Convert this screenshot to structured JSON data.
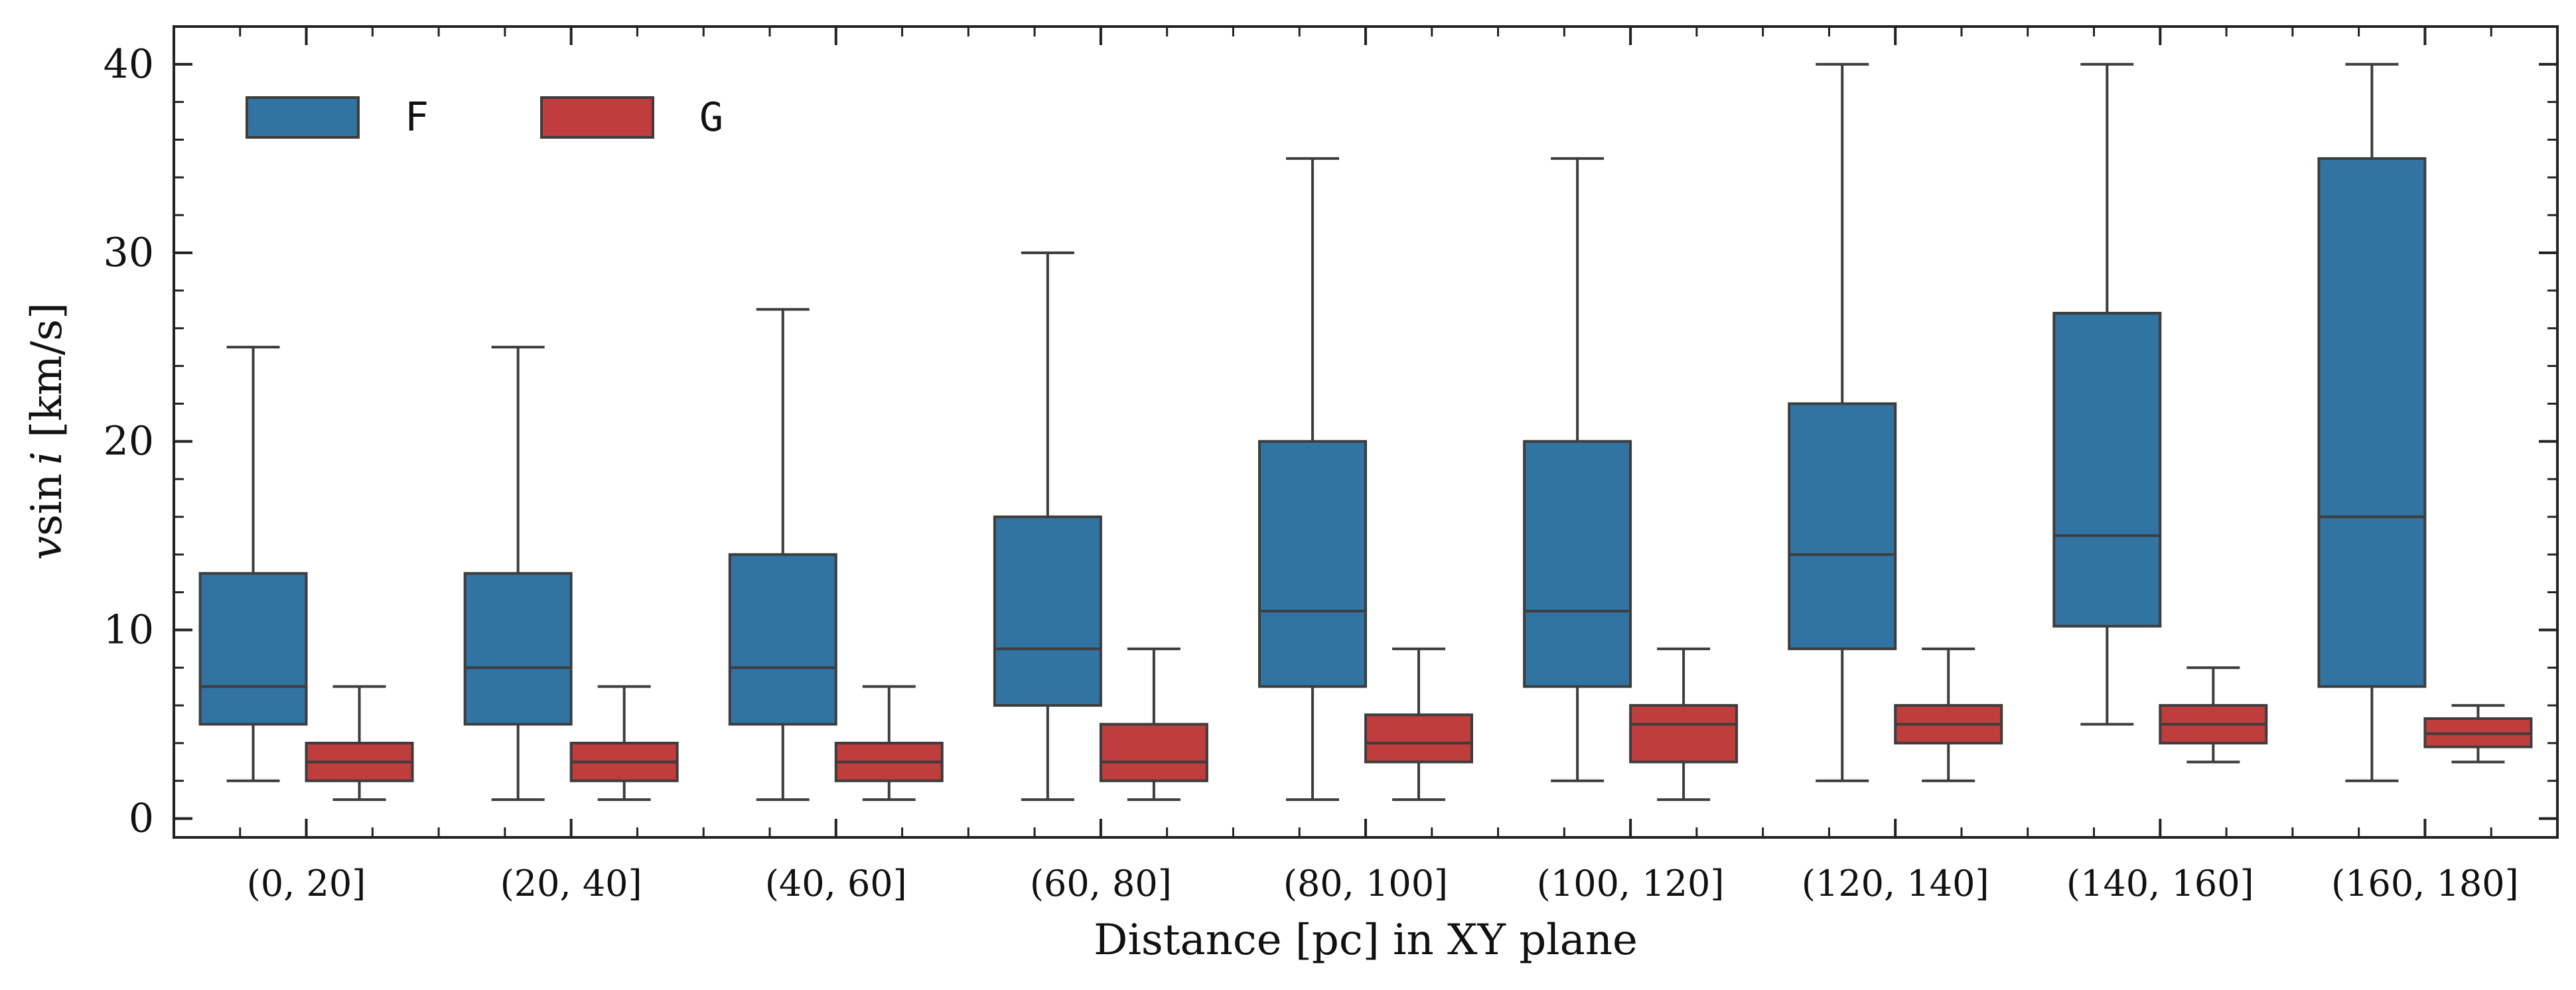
{
  "chart_data": {
    "type": "box",
    "xlabel": "Distance [pc] in XY plane",
    "ylabel_parts": [
      "v",
      "sin",
      "i",
      " [km/s]"
    ],
    "ylim": [
      -1,
      42
    ],
    "yticks": [
      0,
      10,
      20,
      30,
      40
    ],
    "grid": false,
    "legend_position": "top-left",
    "categories": [
      "(0, 20]",
      "(20, 40]",
      "(40, 60]",
      "(60, 80]",
      "(80, 100]",
      "(100, 120]",
      "(120, 140]",
      "(140, 160]",
      "(160, 180]"
    ],
    "series": [
      {
        "name": "F",
        "color": "#3274a1",
        "boxes": [
          {
            "min": 2,
            "q1": 5,
            "median": 7,
            "q3": 13,
            "max": 25
          },
          {
            "min": 1,
            "q1": 5,
            "median": 8,
            "q3": 13,
            "max": 25
          },
          {
            "min": 1,
            "q1": 5,
            "median": 8,
            "q3": 14,
            "max": 27
          },
          {
            "min": 1,
            "q1": 6,
            "median": 9,
            "q3": 16,
            "max": 30
          },
          {
            "min": 1,
            "q1": 7,
            "median": 11,
            "q3": 20,
            "max": 35
          },
          {
            "min": 2,
            "q1": 7,
            "median": 11,
            "q3": 20,
            "max": 35
          },
          {
            "min": 2,
            "q1": 9,
            "median": 14,
            "q3": 22,
            "max": 40
          },
          {
            "min": 5,
            "q1": 10.2,
            "median": 15,
            "q3": 26.8,
            "max": 40
          },
          {
            "min": 2,
            "q1": 7,
            "median": 16,
            "q3": 35,
            "max": 40
          }
        ]
      },
      {
        "name": "G",
        "color": "#c03d3e",
        "boxes": [
          {
            "min": 1,
            "q1": 2,
            "median": 3,
            "q3": 4,
            "max": 7
          },
          {
            "min": 1,
            "q1": 2,
            "median": 3,
            "q3": 4,
            "max": 7
          },
          {
            "min": 1,
            "q1": 2,
            "median": 3,
            "q3": 4,
            "max": 7
          },
          {
            "min": 1,
            "q1": 2,
            "median": 3,
            "q3": 5,
            "max": 9
          },
          {
            "min": 1,
            "q1": 3,
            "median": 4,
            "q3": 5.5,
            "max": 9
          },
          {
            "min": 1,
            "q1": 3,
            "median": 5,
            "q3": 6,
            "max": 9
          },
          {
            "min": 2,
            "q1": 4,
            "median": 5,
            "q3": 6,
            "max": 9
          },
          {
            "min": 3,
            "q1": 4,
            "median": 5,
            "q3": 6,
            "max": 8
          },
          {
            "min": 3,
            "q1": 3.8,
            "median": 4.5,
            "q3": 5.3,
            "max": 6
          }
        ]
      }
    ]
  }
}
